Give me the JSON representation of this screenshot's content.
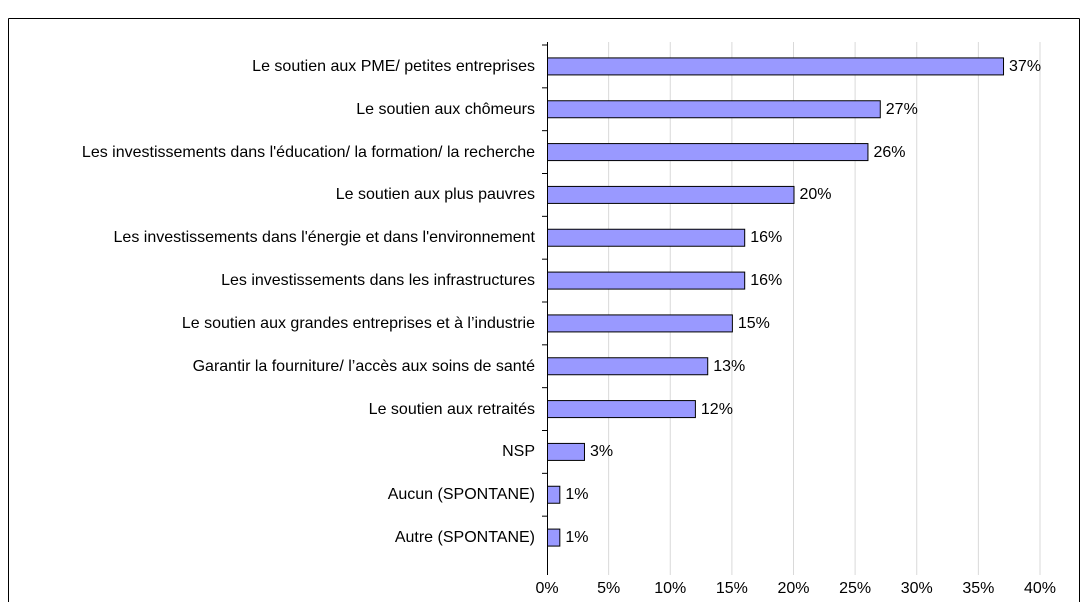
{
  "chart_data": {
    "type": "bar",
    "orientation": "horizontal",
    "categories": [
      "Le soutien aux PME/ petites entreprises",
      "Le soutien aux chômeurs",
      "Les investissements dans l'éducation/ la formation/ la recherche",
      "Le soutien aux plus pauvres",
      "Les investissements dans l'énergie et dans l'environnement",
      "Les investissements dans les infrastructures",
      "Le soutien aux grandes entreprises et à l’industrie",
      "Garantir la fourniture/ l’accès aux soins de santé",
      "Le soutien aux retraités",
      "NSP",
      "Aucun (SPONTANE)",
      "Autre (SPONTANE)"
    ],
    "values": [
      37,
      27,
      26,
      20,
      16,
      16,
      15,
      13,
      12,
      3,
      1,
      1
    ],
    "value_labels": [
      "37%",
      "27%",
      "26%",
      "20%",
      "16%",
      "16%",
      "15%",
      "13%",
      "12%",
      "3%",
      "1%",
      "1%"
    ],
    "color": "#9999ff",
    "xlim": [
      0,
      40
    ],
    "xticks": [
      {
        "value": 0,
        "label": "0%"
      },
      {
        "value": 5,
        "label": "5%"
      },
      {
        "value": 10,
        "label": "10%"
      },
      {
        "value": 15,
        "label": "15%"
      },
      {
        "value": 20,
        "label": "20%"
      },
      {
        "value": 25,
        "label": "25%"
      },
      {
        "value": 30,
        "label": "30%"
      },
      {
        "value": 35,
        "label": "35%"
      },
      {
        "value": 40,
        "label": "40%"
      }
    ],
    "grid": true
  }
}
